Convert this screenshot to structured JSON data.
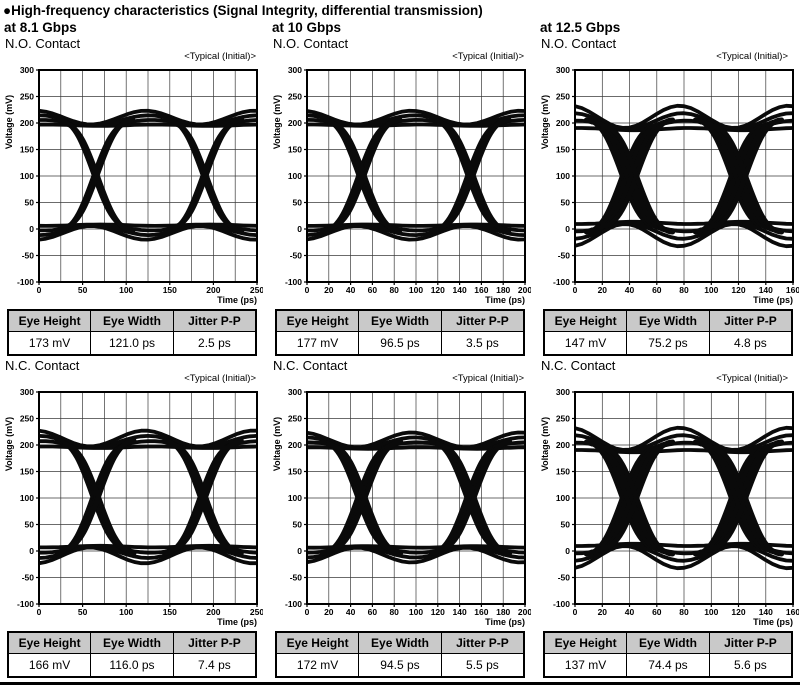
{
  "title": "●High-frequency characteristics (Signal Integrity, differential transmission)",
  "rate_headers": [
    "at 8.1 Gbps",
    "at 10 Gbps",
    "at 12.5 Gbps"
  ],
  "table_headers": [
    "Eye Height",
    "Eye Width",
    "Jitter P-P"
  ],
  "typical_note": "<Typical (Initial)>",
  "axis": {
    "x_label": "Time (ps)",
    "y_label": "Voltage (mV)"
  },
  "chart_data": [
    {
      "id": "no-contact-8p1gbps",
      "rate": "at 8.1 Gbps",
      "contact": "N.O. Contact",
      "type": "line",
      "subtype": "eye-diagram",
      "grid": true,
      "legend": false,
      "annotation": "<Typical (Initial)>",
      "xlabel": "Time (ps)",
      "ylabel": "Voltage (mV)",
      "xlim": [
        0,
        250
      ],
      "ylim": [
        -100,
        300
      ],
      "x_ticks": [
        0,
        50,
        100,
        150,
        200,
        250
      ],
      "x_grid_step": 25,
      "y_ticks": [
        300,
        250,
        200,
        150,
        100,
        50,
        0,
        -50,
        -100
      ],
      "y_grid_step": 50,
      "signal": {
        "high_mV": 203,
        "low_mV": 0,
        "crossing_mV": 100,
        "unit_interval_ps": 125,
        "crossings_ps": [
          65,
          190
        ],
        "spread_mV": 13,
        "jitter_ps": 2.5
      },
      "measurements": [
        "173 mV",
        "121.0 ps",
        "2.5 ps"
      ]
    },
    {
      "id": "no-contact-10gbps",
      "rate": "at 10 Gbps",
      "contact": "N.O. Contact",
      "type": "line",
      "subtype": "eye-diagram",
      "grid": true,
      "legend": false,
      "annotation": "<Typical (Initial)>",
      "xlabel": "Time (ps)",
      "ylabel": "Voltage (mV)",
      "xlim": [
        0,
        200
      ],
      "ylim": [
        -100,
        300
      ],
      "x_ticks": [
        0,
        20,
        40,
        60,
        80,
        100,
        120,
        140,
        160,
        180,
        200
      ],
      "x_grid_step": 20,
      "y_ticks": [
        300,
        250,
        200,
        150,
        100,
        50,
        0,
        -50,
        -100
      ],
      "y_grid_step": 50,
      "signal": {
        "high_mV": 203,
        "low_mV": 0,
        "crossing_mV": 100,
        "unit_interval_ps": 100,
        "crossings_ps": [
          50,
          150
        ],
        "spread_mV": 13,
        "jitter_ps": 3
      },
      "measurements": [
        "177 mV",
        "96.5 ps",
        "3.5 ps"
      ]
    },
    {
      "id": "no-contact-12p5gbps",
      "rate": "at 12.5 Gbps",
      "contact": "N.O. Contact",
      "type": "line",
      "subtype": "eye-diagram",
      "grid": true,
      "legend": false,
      "annotation": "<Typical (Initial)>",
      "xlabel": "Time (ps)",
      "ylabel": "Voltage (mV)",
      "xlim": [
        0,
        160
      ],
      "ylim": [
        -100,
        300
      ],
      "x_ticks": [
        0,
        20,
        40,
        60,
        80,
        100,
        120,
        140,
        160
      ],
      "x_grid_step": 20,
      "y_ticks": [
        300,
        250,
        200,
        150,
        100,
        50,
        0,
        -50,
        -100
      ],
      "y_grid_step": 50,
      "signal": {
        "high_mV": 200,
        "low_mV": 0,
        "crossing_mV": 100,
        "unit_interval_ps": 80,
        "crossings_ps": [
          40,
          120
        ],
        "spread_mV": 21,
        "jitter_ps": 6
      },
      "measurements": [
        "147 mV",
        "75.2 ps",
        "4.8 ps"
      ]
    },
    {
      "id": "nc-contact-8p1gbps",
      "rate": "at 8.1 Gbps",
      "contact": "N.C. Contact",
      "type": "line",
      "subtype": "eye-diagram",
      "grid": true,
      "legend": false,
      "annotation": "<Typical (Initial)>",
      "xlabel": "Time (ps)",
      "ylabel": "Voltage (mV)",
      "xlim": [
        0,
        250
      ],
      "ylim": [
        -100,
        300
      ],
      "x_ticks": [
        0,
        50,
        100,
        150,
        200,
        250
      ],
      "x_grid_step": 25,
      "y_ticks": [
        300,
        250,
        200,
        150,
        100,
        50,
        0,
        -50,
        -100
      ],
      "y_grid_step": 50,
      "signal": {
        "high_mV": 204,
        "low_mV": 0,
        "crossing_mV": 100,
        "unit_interval_ps": 125,
        "crossings_ps": [
          65,
          188
        ],
        "spread_mV": 15,
        "jitter_ps": 4
      },
      "measurements": [
        "166 mV",
        "116.0 ps",
        "7.4 ps"
      ]
    },
    {
      "id": "nc-contact-10gbps",
      "rate": "at 10 Gbps",
      "contact": "N.C. Contact",
      "type": "line",
      "subtype": "eye-diagram",
      "grid": true,
      "legend": false,
      "annotation": "<Typical (Initial)>",
      "xlabel": "Time (ps)",
      "ylabel": "Voltage (mV)",
      "xlim": [
        0,
        200
      ],
      "ylim": [
        -100,
        300
      ],
      "x_ticks": [
        0,
        20,
        40,
        60,
        80,
        100,
        120,
        140,
        160,
        180,
        200
      ],
      "x_grid_step": 20,
      "y_ticks": [
        300,
        250,
        200,
        150,
        100,
        50,
        0,
        -50,
        -100
      ],
      "y_grid_step": 50,
      "signal": {
        "high_mV": 202,
        "low_mV": 0,
        "crossing_mV": 100,
        "unit_interval_ps": 100,
        "crossings_ps": [
          50,
          150
        ],
        "spread_mV": 14,
        "jitter_ps": 4
      },
      "measurements": [
        "172 mV",
        "94.5 ps",
        "5.5 ps"
      ]
    },
    {
      "id": "nc-contact-12p5gbps",
      "rate": "at 12.5 Gbps",
      "contact": "N.C. Contact",
      "type": "line",
      "subtype": "eye-diagram",
      "grid": true,
      "legend": false,
      "annotation": "<Typical (Initial)>",
      "xlabel": "Time (ps)",
      "ylabel": "Voltage (mV)",
      "xlim": [
        0,
        160
      ],
      "ylim": [
        -100,
        300
      ],
      "x_ticks": [
        0,
        20,
        40,
        60,
        80,
        100,
        120,
        140,
        160
      ],
      "x_grid_step": 20,
      "y_ticks": [
        300,
        250,
        200,
        150,
        100,
        50,
        0,
        -50,
        -100
      ],
      "y_grid_step": 50,
      "signal": {
        "high_mV": 200,
        "low_mV": 0,
        "crossing_mV": 100,
        "unit_interval_ps": 80,
        "crossings_ps": [
          40,
          120
        ],
        "spread_mV": 21,
        "jitter_ps": 6
      },
      "measurements": [
        "137 mV",
        "74.4 ps",
        "5.6 ps"
      ]
    }
  ]
}
